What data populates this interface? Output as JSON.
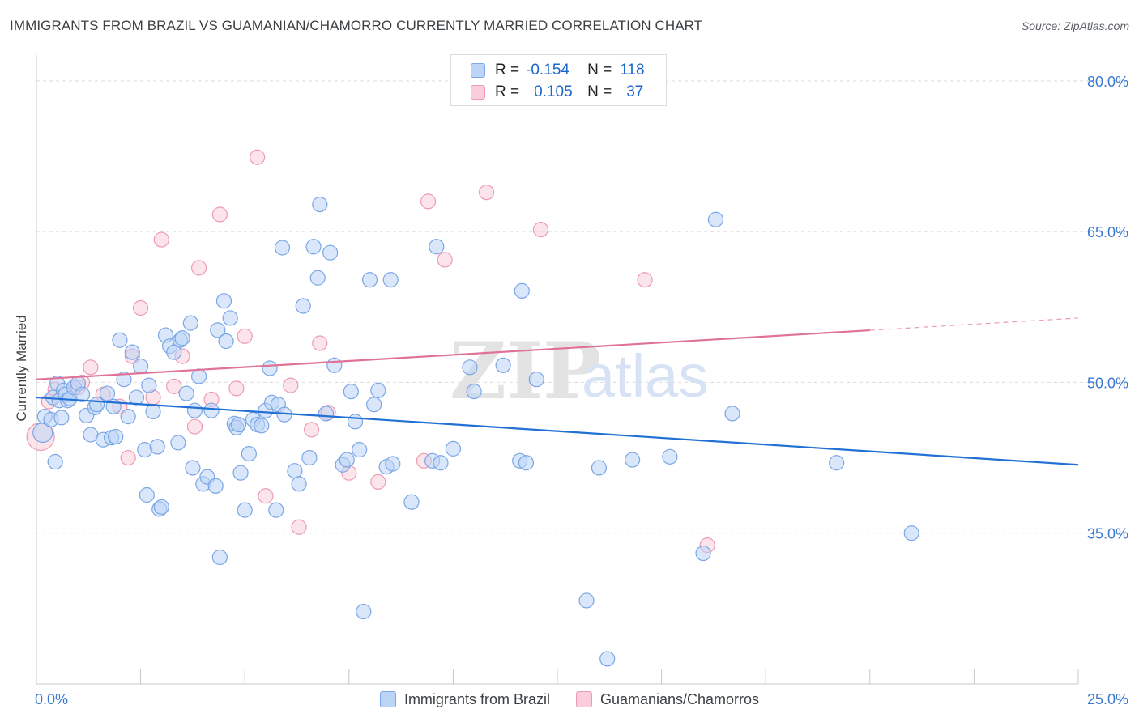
{
  "title": "IMMIGRANTS FROM BRAZIL VS GUAMANIAN/CHAMORRO CURRENTLY MARRIED CORRELATION CHART",
  "source": "Source: ZipAtlas.com",
  "watermark": {
    "zip": "ZIP",
    "atlas": "atlas"
  },
  "legend": {
    "r_label": "R =",
    "n_label": "N =",
    "series1": {
      "r": "-0.154",
      "n": "118"
    },
    "series2": {
      "r": "0.105",
      "n": "37"
    }
  },
  "colors": {
    "blue_fill": "#bcd4f5",
    "blue_stroke": "#7aa6e6",
    "blue_line": "#2170d4",
    "pink_fill": "#f9cddb",
    "pink_stroke": "#ee9ab5",
    "pink_line": "#e07298",
    "tick_label": "#3b78d0",
    "grid": "#dcdcdc"
  },
  "chart_data": {
    "type": "scatter",
    "title": "IMMIGRANTS FROM BRAZIL VS GUAMANIAN/CHAMORRO CURRENTLY MARRIED CORRELATION CHART",
    "xlabel": "",
    "ylabel": "Currently Married",
    "xlim": [
      0,
      25
    ],
    "ylim": [
      20,
      82
    ],
    "x_tick_labels": [
      {
        "value": 0,
        "label": "0.0%"
      },
      {
        "value": 25,
        "label": "25.0%"
      }
    ],
    "y_tick_labels": [
      {
        "value": 80,
        "label": "80.0%"
      },
      {
        "value": 65,
        "label": "65.0%"
      },
      {
        "value": 50,
        "label": "50.0%"
      },
      {
        "value": 35,
        "label": "35.0%"
      }
    ],
    "grid": "horizontal dashed",
    "series": [
      {
        "name": "Immigrants from Brazil",
        "color": "#7aa6e6",
        "r": -0.154,
        "n": 118,
        "trend": {
          "x": [
            0,
            25
          ],
          "y": [
            48.5,
            41.8
          ],
          "solid_until": 25
        },
        "points": [
          [
            0.15,
            45.0
          ],
          [
            0.2,
            46.6
          ],
          [
            0.35,
            46.3
          ],
          [
            0.4,
            48.5
          ],
          [
            0.45,
            42.1
          ],
          [
            0.5,
            49.9
          ],
          [
            0.55,
            48.2
          ],
          [
            0.6,
            46.5
          ],
          [
            0.65,
            49.2
          ],
          [
            0.7,
            48.8
          ],
          [
            0.75,
            48.2
          ],
          [
            0.8,
            48.4
          ],
          [
            0.9,
            49.5
          ],
          [
            1.0,
            49.9
          ],
          [
            1.1,
            48.8
          ],
          [
            1.2,
            46.7
          ],
          [
            1.3,
            44.8
          ],
          [
            1.4,
            47.5
          ],
          [
            1.45,
            47.8
          ],
          [
            1.6,
            44.3
          ],
          [
            1.7,
            48.9
          ],
          [
            1.8,
            44.5
          ],
          [
            1.85,
            47.6
          ],
          [
            1.9,
            44.6
          ],
          [
            2.0,
            54.2
          ],
          [
            2.1,
            50.3
          ],
          [
            2.2,
            46.6
          ],
          [
            2.3,
            53.0
          ],
          [
            2.4,
            48.5
          ],
          [
            2.5,
            51.6
          ],
          [
            2.6,
            43.3
          ],
          [
            2.65,
            38.8
          ],
          [
            2.7,
            49.7
          ],
          [
            2.8,
            47.1
          ],
          [
            2.9,
            43.6
          ],
          [
            2.95,
            37.4
          ],
          [
            3.0,
            37.6
          ],
          [
            3.1,
            54.7
          ],
          [
            3.2,
            53.6
          ],
          [
            3.3,
            53.0
          ],
          [
            3.4,
            44.0
          ],
          [
            3.45,
            54.2
          ],
          [
            3.5,
            54.4
          ],
          [
            3.6,
            48.9
          ],
          [
            3.7,
            55.9
          ],
          [
            3.75,
            41.5
          ],
          [
            3.8,
            47.2
          ],
          [
            3.9,
            50.6
          ],
          [
            4.0,
            39.9
          ],
          [
            4.1,
            40.6
          ],
          [
            4.2,
            47.2
          ],
          [
            4.3,
            39.7
          ],
          [
            4.35,
            55.2
          ],
          [
            4.4,
            32.6
          ],
          [
            4.5,
            58.1
          ],
          [
            4.55,
            54.1
          ],
          [
            4.65,
            56.4
          ],
          [
            4.75,
            45.9
          ],
          [
            4.8,
            45.5
          ],
          [
            4.85,
            45.8
          ],
          [
            4.9,
            41.0
          ],
          [
            5.0,
            37.3
          ],
          [
            5.1,
            42.9
          ],
          [
            5.2,
            46.3
          ],
          [
            5.3,
            45.8
          ],
          [
            5.4,
            45.7
          ],
          [
            5.5,
            47.2
          ],
          [
            5.6,
            51.4
          ],
          [
            5.65,
            48.0
          ],
          [
            5.75,
            37.3
          ],
          [
            5.8,
            47.8
          ],
          [
            5.9,
            63.4
          ],
          [
            5.95,
            46.8
          ],
          [
            6.2,
            41.2
          ],
          [
            6.3,
            39.9
          ],
          [
            6.4,
            57.6
          ],
          [
            6.55,
            42.5
          ],
          [
            6.65,
            63.5
          ],
          [
            6.75,
            60.4
          ],
          [
            6.8,
            67.7
          ],
          [
            6.95,
            46.9
          ],
          [
            7.05,
            62.9
          ],
          [
            7.15,
            51.7
          ],
          [
            7.35,
            41.8
          ],
          [
            7.45,
            42.3
          ],
          [
            7.55,
            49.1
          ],
          [
            7.65,
            46.1
          ],
          [
            7.75,
            43.3
          ],
          [
            7.85,
            27.2
          ],
          [
            8.0,
            60.2
          ],
          [
            8.1,
            47.8
          ],
          [
            8.2,
            49.2
          ],
          [
            8.4,
            41.6
          ],
          [
            8.5,
            60.2
          ],
          [
            8.55,
            41.9
          ],
          [
            9.0,
            38.1
          ],
          [
            9.5,
            42.2
          ],
          [
            9.6,
            63.5
          ],
          [
            9.7,
            42.0
          ],
          [
            10.0,
            43.4
          ],
          [
            10.4,
            51.5
          ],
          [
            10.5,
            49.1
          ],
          [
            11.2,
            51.7
          ],
          [
            11.6,
            42.2
          ],
          [
            11.65,
            59.1
          ],
          [
            11.75,
            42.0
          ],
          [
            12.0,
            50.3
          ],
          [
            13.2,
            28.3
          ],
          [
            13.5,
            41.5
          ],
          [
            13.7,
            22.5
          ],
          [
            14.3,
            42.3
          ],
          [
            15.2,
            42.6
          ],
          [
            16.0,
            33.0
          ],
          [
            16.3,
            66.2
          ],
          [
            16.7,
            46.9
          ],
          [
            19.2,
            42.0
          ],
          [
            21.0,
            35.0
          ]
        ]
      },
      {
        "name": "Guamanians/Chamorros",
        "color": "#ee9ab5",
        "r": 0.105,
        "n": 37,
        "trend": {
          "x": [
            0,
            25
          ],
          "y": [
            50.3,
            56.4
          ],
          "solid_until": 20
        },
        "points": [
          [
            0.1,
            44.6
          ],
          [
            0.3,
            48.1
          ],
          [
            1.0,
            49.5
          ],
          [
            1.1,
            50.0
          ],
          [
            1.3,
            51.5
          ],
          [
            1.6,
            48.8
          ],
          [
            2.0,
            47.6
          ],
          [
            2.2,
            42.5
          ],
          [
            2.3,
            52.6
          ],
          [
            2.5,
            57.4
          ],
          [
            2.8,
            48.5
          ],
          [
            3.0,
            64.2
          ],
          [
            3.3,
            49.6
          ],
          [
            3.5,
            52.6
          ],
          [
            3.8,
            45.6
          ],
          [
            3.9,
            61.4
          ],
          [
            4.2,
            48.3
          ],
          [
            4.4,
            66.7
          ],
          [
            4.8,
            49.4
          ],
          [
            5.0,
            54.6
          ],
          [
            5.5,
            38.7
          ],
          [
            5.3,
            72.4
          ],
          [
            6.1,
            49.7
          ],
          [
            6.3,
            35.6
          ],
          [
            6.6,
            45.3
          ],
          [
            6.8,
            53.9
          ],
          [
            7.0,
            47.0
          ],
          [
            7.5,
            41.0
          ],
          [
            8.2,
            40.1
          ],
          [
            9.3,
            42.2
          ],
          [
            9.4,
            68.0
          ],
          [
            9.8,
            62.2
          ],
          [
            10.8,
            68.9
          ],
          [
            12.1,
            65.2
          ],
          [
            14.6,
            60.2
          ],
          [
            16.1,
            33.8
          ],
          [
            0.45,
            49.3
          ]
        ]
      }
    ]
  },
  "bottom_legend": {
    "series1": "Immigrants from Brazil",
    "series2": "Guamanians/Chamorros"
  }
}
